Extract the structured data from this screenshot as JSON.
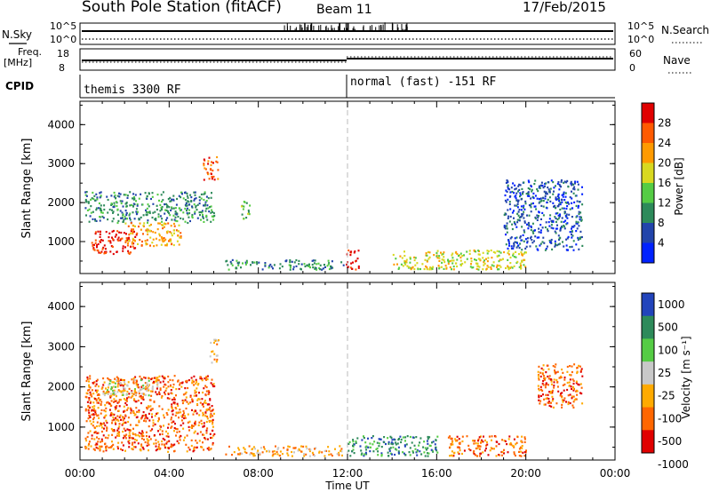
{
  "header": {
    "station": "South Pole Station (fitACF)",
    "beam": "Beam 11",
    "date": "17/Feb/2015"
  },
  "panels": {
    "nsky_label": "N.Sky",
    "nsearch_label": "N.Search",
    "freq_label_1": "Freq.",
    "freq_label_2": "[MHz]",
    "nave_label": "Nave",
    "cpid_label": "CPID",
    "cpid_mode_1": "themis 3300 RF",
    "cpid_mode_2": "normal (fast) -151 RF",
    "nsky_ticks": [
      "10^5",
      "10^0"
    ],
    "freq_ticks": [
      "18",
      "8"
    ],
    "nave_ticks": [
      "60",
      "0"
    ]
  },
  "colors": {
    "power": [
      "#0022ff",
      "#2244aa",
      "#2d8a5a",
      "#55cc44",
      "#d8d820",
      "#ff9a00",
      "#ff5a00",
      "#e00000"
    ],
    "velocity": [
      "#2244bb",
      "#2d8a5a",
      "#55cc44",
      "#c8c8c8",
      "#ffaa00",
      "#ff6600",
      "#e00000"
    ]
  },
  "chart_data": [
    {
      "type": "heatmap",
      "name": "power",
      "ylabel": "Slant Range [km]",
      "xlabel": "Time UT",
      "x_ticks": [
        "00:00",
        "04:00",
        "08:00",
        "12:00",
        "16:00",
        "20:00",
        "00:00"
      ],
      "x_range_hours": [
        0,
        24
      ],
      "y_ticks": [
        1000,
        2000,
        3000,
        4000
      ],
      "y_range_km": [
        180,
        4600
      ],
      "colorbar_label": "Power [dB]",
      "colorbar_ticks": [
        "4",
        "8",
        "12",
        "16",
        "20",
        "24",
        "28"
      ],
      "regions": [
        {
          "t0": 0.2,
          "t1": 6.0,
          "r0": 1500,
          "r1": 2300,
          "c": 2
        },
        {
          "t0": 0.5,
          "t1": 2.5,
          "r0": 700,
          "r1": 1300,
          "c": 7
        },
        {
          "t0": 2.0,
          "t1": 4.5,
          "r0": 900,
          "r1": 1500,
          "c": 5
        },
        {
          "t0": 5.5,
          "t1": 6.2,
          "r0": 2600,
          "r1": 3200,
          "c": 6
        },
        {
          "t0": 6.5,
          "t1": 11.8,
          "r0": 300,
          "r1": 550,
          "c": 2
        },
        {
          "t0": 11.9,
          "t1": 12.5,
          "r0": 300,
          "r1": 800,
          "c": 7
        },
        {
          "t0": 14.0,
          "t1": 20.0,
          "r0": 300,
          "r1": 800,
          "c": 4
        },
        {
          "t0": 19.0,
          "t1": 22.5,
          "r0": 800,
          "r1": 2600,
          "c": 1
        },
        {
          "t0": 7.2,
          "t1": 7.6,
          "r0": 1600,
          "r1": 2100,
          "c": 3
        }
      ]
    },
    {
      "type": "heatmap",
      "name": "velocity",
      "ylabel": "Slant Range [km]",
      "xlabel": "Time UT",
      "x_ticks": [
        "00:00",
        "04:00",
        "08:00",
        "12:00",
        "16:00",
        "20:00",
        "00:00"
      ],
      "x_range_hours": [
        0,
        24
      ],
      "y_ticks": [
        1000,
        2000,
        3000,
        4000
      ],
      "y_range_km": [
        180,
        4600
      ],
      "colorbar_label": "Velocity [m s⁻¹]",
      "colorbar_ticks": [
        "1000",
        "500",
        "100",
        "25",
        "-25",
        "-100",
        "-500",
        "-1000"
      ],
      "regions": [
        {
          "t0": 0.2,
          "t1": 6.0,
          "r0": 400,
          "r1": 2300,
          "c": 5
        },
        {
          "t0": 1.0,
          "t1": 3.5,
          "r0": 1800,
          "r1": 2200,
          "c": 3
        },
        {
          "t0": 6.5,
          "t1": 11.8,
          "r0": 300,
          "r1": 550,
          "c": 4
        },
        {
          "t0": 12.0,
          "t1": 16.0,
          "r0": 300,
          "r1": 800,
          "c": 1
        },
        {
          "t0": 16.5,
          "t1": 20.0,
          "r0": 300,
          "r1": 800,
          "c": 5
        },
        {
          "t0": 20.5,
          "t1": 22.5,
          "r0": 1500,
          "r1": 2600,
          "c": 5
        },
        {
          "t0": 5.8,
          "t1": 6.2,
          "r0": 2600,
          "r1": 3200,
          "c": 4
        }
      ]
    }
  ]
}
